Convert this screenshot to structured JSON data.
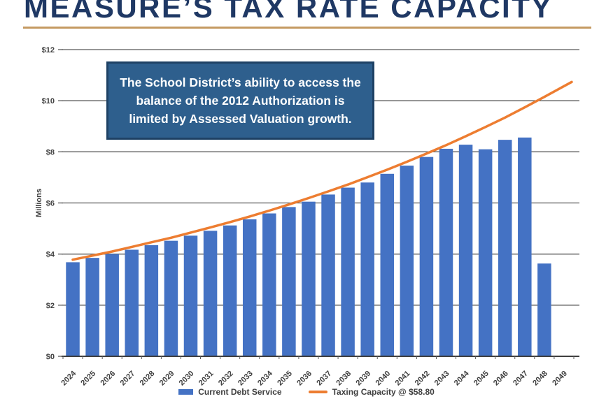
{
  "slide": {
    "title": "MEASURE’S TAX RATE CAPACITY",
    "callout": {
      "lines": [
        "The School District’s ability to access the",
        "balance of the 2012 Authorization is",
        "limited by Assessed Valuation growth."
      ]
    }
  },
  "chart_data": {
    "type": "bar",
    "subtype": "bar-line-combo",
    "title": "",
    "xlabel": "",
    "ylabel": "Millions",
    "ylim": [
      0,
      12
    ],
    "ytick_step": 2,
    "ytick_labels": [
      "$0",
      "$2",
      "$4",
      "$6",
      "$8",
      "$10",
      "$12"
    ],
    "grid": "horizontal",
    "legend_position": "bottom-center",
    "categories": [
      "2024",
      "2025",
      "2026",
      "2027",
      "2028",
      "2029",
      "2030",
      "2031",
      "2032",
      "2033",
      "2034",
      "2035",
      "2036",
      "2037",
      "2038",
      "2039",
      "2040",
      "2041",
      "2042",
      "2043",
      "2044",
      "2045",
      "2046",
      "2047",
      "2048",
      "2049"
    ],
    "series": [
      {
        "name": "Current Debt Service",
        "type": "bar",
        "color": "#4472C4",
        "values": [
          3.68,
          3.85,
          4.0,
          4.17,
          4.35,
          4.52,
          4.72,
          4.91,
          5.12,
          5.36,
          5.59,
          5.84,
          6.05,
          6.33,
          6.6,
          6.8,
          7.14,
          7.46,
          7.8,
          8.12,
          8.28,
          8.1,
          8.47,
          8.56,
          3.63,
          null
        ]
      },
      {
        "name": "Taxing Capacity @ $58.80",
        "type": "line",
        "color": "#ED7D31",
        "values": [
          3.78,
          3.94,
          4.1,
          4.28,
          4.46,
          4.64,
          4.84,
          5.04,
          5.25,
          5.47,
          5.7,
          5.94,
          6.19,
          6.45,
          6.72,
          7.01,
          7.3,
          7.61,
          7.93,
          8.26,
          8.61,
          8.97,
          9.34,
          9.74,
          10.15,
          10.57
        ]
      }
    ]
  },
  "colors": {
    "title": "#1F3864",
    "underline": "#C49A61",
    "bar": "#4472C4",
    "line": "#ED7D31",
    "callout_fill": "#2E5F8D",
    "callout_border": "#1E4164",
    "axis_text": "#404040",
    "gridline": "#595959",
    "axis_line": "#3F3F3F"
  }
}
